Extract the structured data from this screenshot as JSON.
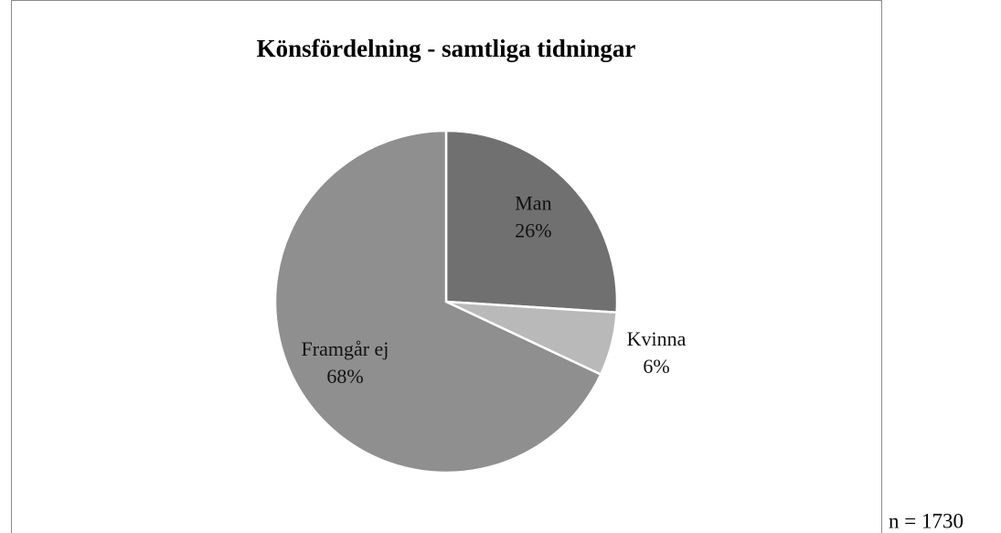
{
  "chart_data": {
    "type": "pie",
    "title": "Könsfördelning - samtliga tidningar",
    "categories": [
      "Man",
      "Kvinna",
      "Framgår ej"
    ],
    "values": [
      26,
      6,
      68
    ],
    "value_labels": [
      "26%",
      "6%",
      "68%"
    ],
    "colors": [
      "#707070",
      "#b9b9b9",
      "#8f8f8f"
    ],
    "annotation": "n = 1730"
  }
}
